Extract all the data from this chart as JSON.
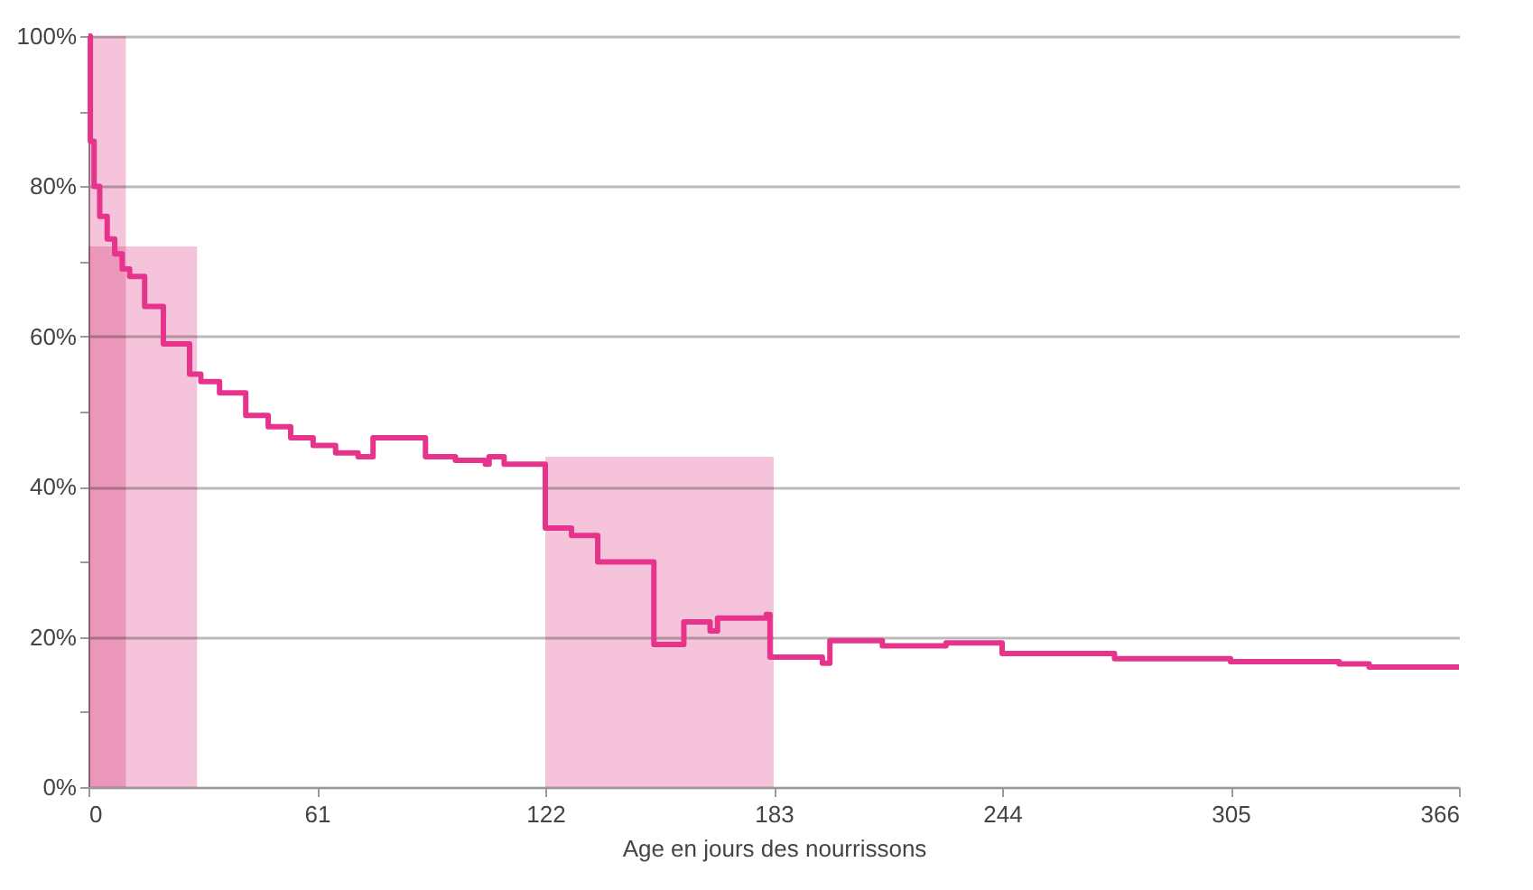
{
  "chart_data": {
    "type": "step",
    "xlabel": "Age en jours des nourrissons",
    "xlim": [
      0,
      366
    ],
    "xticks": [
      0,
      61,
      122,
      183,
      244,
      305,
      366
    ],
    "ylim": [
      0,
      100
    ],
    "yticks": [
      {
        "value": 0,
        "label": "0%"
      },
      {
        "value": 10,
        "label": null
      },
      {
        "value": 20,
        "label": "20%"
      },
      {
        "value": 30,
        "label": null
      },
      {
        "value": 40,
        "label": "40%"
      },
      {
        "value": 50,
        "label": null
      },
      {
        "value": 60,
        "label": "60%"
      },
      {
        "value": 70,
        "label": null
      },
      {
        "value": 80,
        "label": "80%"
      },
      {
        "value": 90,
        "label": null
      },
      {
        "value": 100,
        "label": "100%"
      }
    ],
    "grid": "y",
    "marker": "none",
    "line_style": "solid",
    "series": [
      {
        "type": "area",
        "color": "#f5c4da",
        "x": [
          0,
          10
        ],
        "values": [
          100,
          100
        ]
      },
      {
        "type": "area",
        "color": "#f5c4da",
        "x": [
          0,
          29
        ],
        "values": [
          72,
          72
        ]
      },
      {
        "type": "area",
        "color": "#f5c4da",
        "x": [
          122,
          183
        ],
        "values": [
          44,
          44
        ]
      },
      {
        "color": "#e6348c",
        "x": [
          0,
          0.5,
          1.5,
          3,
          5,
          7,
          9,
          11,
          15,
          20,
          27,
          30,
          35,
          42,
          48,
          54,
          60,
          66,
          72,
          76,
          90,
          98,
          106,
          107,
          111,
          122,
          129,
          136,
          151,
          159,
          166,
          168,
          181,
          182,
          196,
          198,
          212,
          229,
          244,
          274,
          305,
          334,
          342,
          366
        ],
        "values": [
          100,
          86,
          80,
          76,
          73,
          71,
          69,
          68,
          64,
          59,
          55,
          54,
          52.5,
          49.5,
          48,
          46.5,
          45.5,
          44.5,
          44,
          46.5,
          44,
          43.5,
          43,
          44,
          43,
          34.5,
          33.5,
          30,
          19,
          22,
          20.8,
          22.5,
          23,
          17.3,
          16.5,
          19.5,
          18.8,
          19.2,
          17.8,
          17.1,
          16.7,
          16.4,
          16,
          16
        ]
      }
    ]
  }
}
